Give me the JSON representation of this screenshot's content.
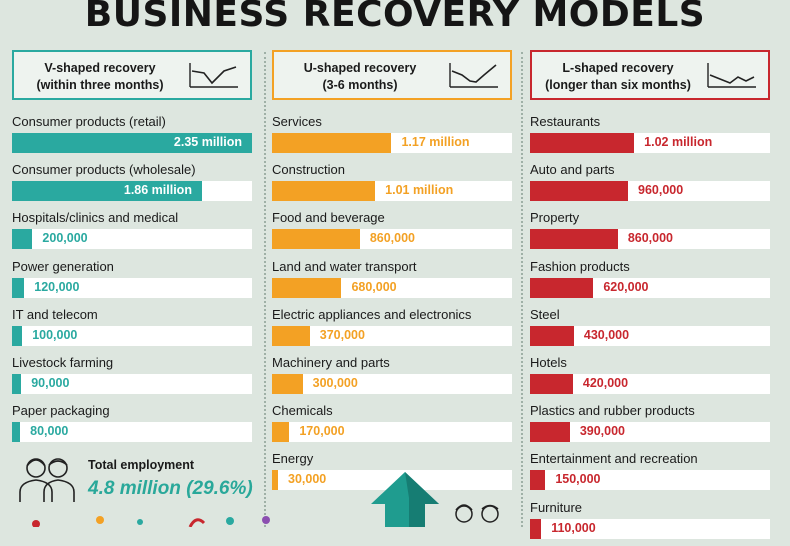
{
  "title": "BUSINESS RECOVERY MODELS",
  "colors": {
    "v": "#2aa9a0",
    "u": "#f3a124",
    "l": "#c8272e",
    "accent_text": "#29a89a"
  },
  "total": {
    "label": "Total employment",
    "value": "4.8 million (29.6%)"
  },
  "icons": [
    "v-trend-icon",
    "u-trend-icon",
    "l-trend-icon",
    "people-icon",
    "growth-arrow-icon"
  ],
  "chart_data": [
    {
      "type": "bar",
      "title": "V-shaped recovery (within three months)",
      "title_line1": "V-shaped recovery",
      "title_line2": "(within three months)",
      "color": "#2aa9a0",
      "unit": "jobs",
      "categories": [
        "Consumer products (retail)",
        "Consumer products (wholesale)",
        "Hospitals/clinics and medical",
        "Power generation",
        "IT and telecom",
        "Livestock farming",
        "Paper packaging"
      ],
      "values": [
        2350000,
        1860000,
        200000,
        120000,
        100000,
        90000,
        80000
      ],
      "labels": [
        "2.35 million",
        "1.86 million",
        "200,000",
        "120,000",
        "100,000",
        "90,000",
        "80,000"
      ]
    },
    {
      "type": "bar",
      "title": "U-shaped recovery (3-6 months)",
      "title_line1": "U-shaped recovery",
      "title_line2": "(3-6 months)",
      "color": "#f3a124",
      "unit": "jobs",
      "categories": [
        "Services",
        "Construction",
        "Food and beverage",
        "Land and water transport",
        "Electric appliances and electronics",
        "Machinery and parts",
        "Chemicals",
        "Energy"
      ],
      "values": [
        1170000,
        1010000,
        860000,
        680000,
        370000,
        300000,
        170000,
        30000
      ],
      "labels": [
        "1.17 million",
        "1.01 million",
        "860,000",
        "680,000",
        "370,000",
        "300,000",
        "170,000",
        "30,000"
      ]
    },
    {
      "type": "bar",
      "title": "L-shaped recovery (longer than six months)",
      "title_line1": "L-shaped recovery",
      "title_line2": "(longer than six months)",
      "color": "#c8272e",
      "unit": "jobs",
      "categories": [
        "Restaurants",
        "Auto and parts",
        "Property",
        "Fashion products",
        "Steel",
        "Hotels",
        "Plastics and rubber products",
        "Entertainment and recreation",
        "Furniture"
      ],
      "values": [
        1020000,
        960000,
        860000,
        620000,
        430000,
        420000,
        390000,
        150000,
        110000
      ],
      "labels": [
        "1.02 million",
        "960,000",
        "860,000",
        "620,000",
        "430,000",
        "420,000",
        "390,000",
        "150,000",
        "110,000"
      ]
    }
  ]
}
